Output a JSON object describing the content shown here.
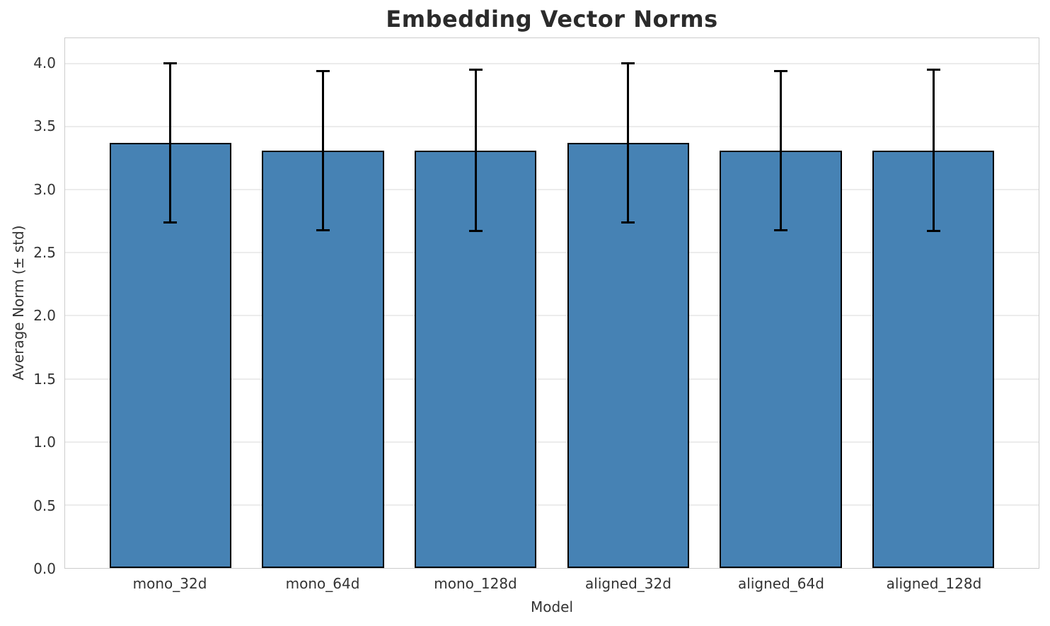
{
  "chart_data": {
    "type": "bar",
    "title": "Embedding Vector Norms",
    "xlabel": "Model",
    "ylabel": "Average Norm (± std)",
    "categories": [
      "mono_32d",
      "mono_64d",
      "mono_128d",
      "aligned_32d",
      "aligned_64d",
      "aligned_128d"
    ],
    "values": [
      3.37,
      3.31,
      3.31,
      3.37,
      3.31,
      3.31
    ],
    "errors": [
      0.63,
      0.63,
      0.64,
      0.63,
      0.63,
      0.64
    ],
    "ylim": [
      0,
      4.2
    ],
    "ytick_labels": [
      "0.0",
      "0.5",
      "1.0",
      "1.5",
      "2.0",
      "2.5",
      "3.0",
      "3.5",
      "4.0"
    ],
    "grid": true,
    "legend": "none",
    "colors": {
      "bar_fill": "#4682b4",
      "bar_edge": "#000000",
      "error_bar": "#000000",
      "gridline": "#ececec",
      "spine": "#cccccc",
      "background": "#ffffff",
      "title_text": "#2b2b2b",
      "tick_text": "#333333"
    }
  }
}
